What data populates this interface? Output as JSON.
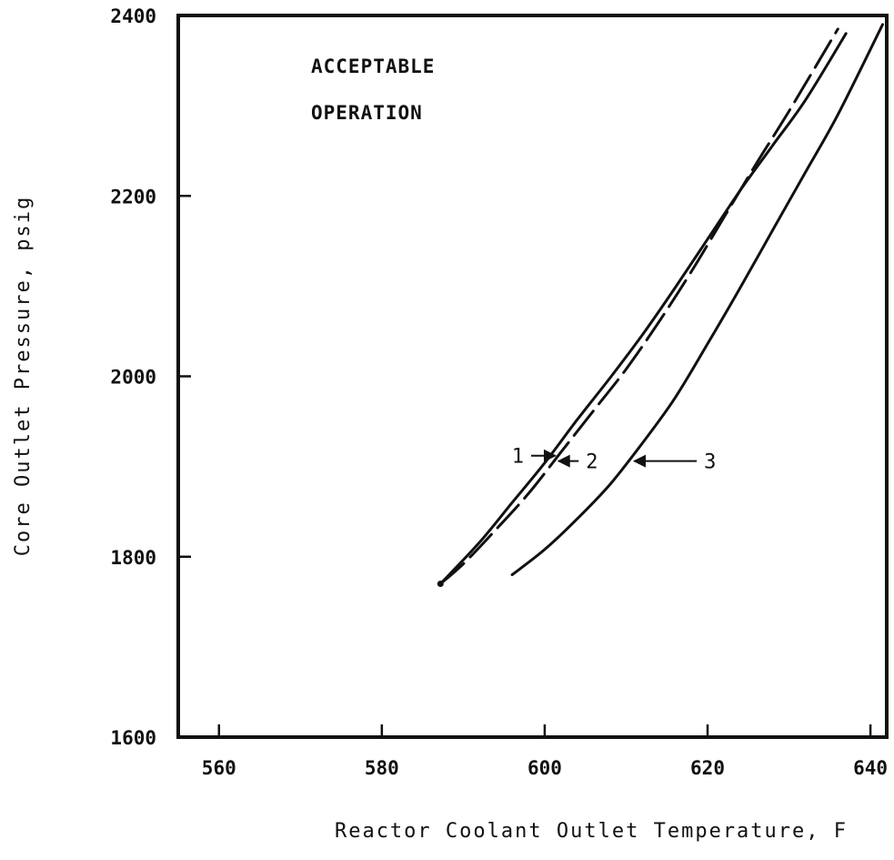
{
  "chart_data": {
    "type": "line",
    "xlabel": "Reactor Coolant Outlet Temperature, F",
    "ylabel": "Core Outlet Pressure, psig",
    "xlim": [
      555,
      642
    ],
    "ylim": [
      1600,
      2400
    ],
    "x_ticks": [
      "560",
      "580",
      "600",
      "620",
      "640"
    ],
    "y_ticks": [
      "1600",
      "1800",
      "2000",
      "2200",
      "2400"
    ],
    "grid": false,
    "annotation": [
      "ACCEPTABLE",
      "OPERATION"
    ],
    "series": [
      {
        "name": "1",
        "style": "solid",
        "x": [
          587.2,
          592,
          596,
          600,
          604,
          608,
          612,
          616,
          620,
          624,
          628,
          632,
          637
        ],
        "y": [
          1770,
          1816,
          1860,
          1904,
          1952,
          1998,
          2046,
          2098,
          2152,
          2206,
          2256,
          2306,
          2380
        ]
      },
      {
        "name": "2",
        "style": "dashed",
        "x": [
          587.2,
          590,
          594,
          598,
          602,
          606,
          610,
          614,
          618,
          622,
          626,
          630,
          636
        ],
        "y": [
          1770,
          1792,
          1830,
          1870,
          1916,
          1962,
          2008,
          2060,
          2116,
          2176,
          2236,
          2294,
          2385
        ]
      },
      {
        "name": "3",
        "style": "solid",
        "x": [
          596,
          600,
          604,
          608,
          612,
          616,
          620,
          624,
          628,
          632,
          636,
          641.5
        ],
        "y": [
          1780,
          1808,
          1842,
          1880,
          1926,
          1976,
          2036,
          2098,
          2162,
          2226,
          2290,
          2390
        ]
      }
    ],
    "curve_labels": [
      {
        "text": "1",
        "x": 599,
        "y": 1912,
        "target_x": 601.3
      },
      {
        "text": "2",
        "x": 603.5,
        "y": 1906,
        "target_x": 601.7
      },
      {
        "text": "3",
        "x": 618,
        "y": 1906,
        "target_x": 611
      }
    ],
    "colors": {
      "ink": "#111111",
      "background": "#ffffff"
    }
  }
}
